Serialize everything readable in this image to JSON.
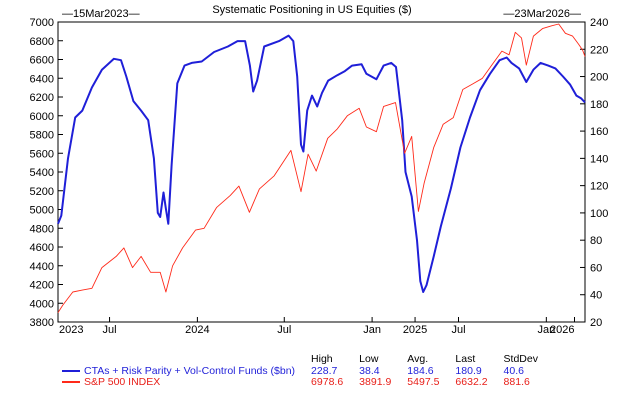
{
  "chart_data": {
    "type": "line",
    "title": "Systematic Positioning in US Equities ($)",
    "start_date_label": "15Mar2023",
    "end_date_label": "23Mar2026",
    "x_ticks": [
      {
        "label": "2023",
        "date": "2023-03-15"
      },
      {
        "label": "Jul",
        "date": "2023-07-01"
      },
      {
        "label": "2024",
        "date": "2024-01-01"
      },
      {
        "label": "Jul",
        "date": "2024-07-01"
      },
      {
        "label": "Jan",
        "date": "2025-01-01"
      },
      {
        "label": "2025",
        "date": "2025-04-01"
      },
      {
        "label": "Jul",
        "date": "2025-07-01"
      },
      {
        "label": "Jan",
        "date": "2026-01-01"
      },
      {
        "label": "2026",
        "date": "2026-03-01"
      }
    ],
    "xlim": [
      "2023-03-15",
      "2026-03-23"
    ],
    "y_left": {
      "ylim": [
        3800,
        7000
      ],
      "ticks": [
        3800,
        4000,
        4200,
        4400,
        4600,
        4800,
        5000,
        5200,
        5400,
        5600,
        5800,
        6000,
        6200,
        6400,
        6600,
        6800,
        7000
      ]
    },
    "y_right": {
      "ylim": [
        20,
        240
      ],
      "ticks": [
        20,
        40,
        60,
        80,
        100,
        120,
        140,
        160,
        180,
        200,
        220,
        240
      ]
    },
    "series": [
      {
        "name": "CTAs + Risk Parity + Vol-Control Funds ($bn)",
        "axis": "right",
        "color": "#1f1fd8",
        "points": [
          [
            "2023-03-15",
            92
          ],
          [
            "2023-03-22",
            98
          ],
          [
            "2023-04-05",
            140
          ],
          [
            "2023-04-20",
            170
          ],
          [
            "2023-05-05",
            175
          ],
          [
            "2023-05-25",
            192
          ],
          [
            "2023-06-15",
            205
          ],
          [
            "2023-07-10",
            213
          ],
          [
            "2023-07-25",
            212
          ],
          [
            "2023-08-05",
            200
          ],
          [
            "2023-08-20",
            182
          ],
          [
            "2023-09-05",
            175
          ],
          [
            "2023-09-20",
            168
          ],
          [
            "2023-10-02",
            140
          ],
          [
            "2023-10-10",
            100
          ],
          [
            "2023-10-15",
            97
          ],
          [
            "2023-10-22",
            115
          ],
          [
            "2023-10-27",
            103
          ],
          [
            "2023-11-01",
            92
          ],
          [
            "2023-11-08",
            135
          ],
          [
            "2023-11-20",
            195
          ],
          [
            "2023-12-05",
            208
          ],
          [
            "2023-12-20",
            210
          ],
          [
            "2024-01-10",
            211
          ],
          [
            "2024-02-05",
            218
          ],
          [
            "2024-03-05",
            222
          ],
          [
            "2024-03-25",
            226
          ],
          [
            "2024-04-10",
            226
          ],
          [
            "2024-04-20",
            208
          ],
          [
            "2024-04-27",
            189
          ],
          [
            "2024-05-05",
            197
          ],
          [
            "2024-05-20",
            222
          ],
          [
            "2024-06-20",
            226
          ],
          [
            "2024-07-10",
            230
          ],
          [
            "2024-07-20",
            226
          ],
          [
            "2024-07-28",
            200
          ],
          [
            "2024-08-05",
            150
          ],
          [
            "2024-08-10",
            145
          ],
          [
            "2024-08-18",
            175
          ],
          [
            "2024-08-28",
            186
          ],
          [
            "2024-09-08",
            178
          ],
          [
            "2024-09-18",
            188
          ],
          [
            "2024-10-01",
            197
          ],
          [
            "2024-10-20",
            201
          ],
          [
            "2024-11-05",
            204
          ],
          [
            "2024-11-20",
            208
          ],
          [
            "2024-12-10",
            209
          ],
          [
            "2024-12-20",
            202
          ],
          [
            "2025-01-10",
            198
          ],
          [
            "2025-01-25",
            208
          ],
          [
            "2025-02-10",
            210
          ],
          [
            "2025-02-20",
            207
          ],
          [
            "2025-03-05",
            168
          ],
          [
            "2025-03-12",
            130
          ],
          [
            "2025-03-25",
            112
          ],
          [
            "2025-04-05",
            80
          ],
          [
            "2025-04-12",
            50
          ],
          [
            "2025-04-18",
            42
          ],
          [
            "2025-04-25",
            47
          ],
          [
            "2025-05-10",
            68
          ],
          [
            "2025-05-25",
            90
          ],
          [
            "2025-06-15",
            118
          ],
          [
            "2025-07-05",
            148
          ],
          [
            "2025-07-25",
            170
          ],
          [
            "2025-08-15",
            190
          ],
          [
            "2025-09-05",
            202
          ],
          [
            "2025-09-25",
            212
          ],
          [
            "2025-10-10",
            214
          ],
          [
            "2025-10-20",
            210
          ],
          [
            "2025-11-05",
            206
          ],
          [
            "2025-11-20",
            196
          ],
          [
            "2025-12-05",
            205
          ],
          [
            "2025-12-20",
            210
          ],
          [
            "2026-01-05",
            208
          ],
          [
            "2026-01-20",
            206
          ],
          [
            "2026-02-05",
            200
          ],
          [
            "2026-02-20",
            194
          ],
          [
            "2026-03-05",
            186
          ],
          [
            "2026-03-15",
            184
          ],
          [
            "2026-03-23",
            181
          ]
        ]
      },
      {
        "name": "S&P 500 INDEX",
        "axis": "left",
        "color": "#ff2a1a",
        "points": [
          [
            "2023-03-15",
            3900
          ],
          [
            "2023-03-25",
            3980
          ],
          [
            "2023-04-15",
            4120
          ],
          [
            "2023-05-05",
            4140
          ],
          [
            "2023-05-25",
            4160
          ],
          [
            "2023-06-15",
            4380
          ],
          [
            "2023-07-15",
            4500
          ],
          [
            "2023-07-31",
            4590
          ],
          [
            "2023-08-18",
            4380
          ],
          [
            "2023-09-05",
            4500
          ],
          [
            "2023-09-25",
            4330
          ],
          [
            "2023-10-15",
            4330
          ],
          [
            "2023-10-27",
            4120
          ],
          [
            "2023-11-10",
            4400
          ],
          [
            "2023-12-01",
            4590
          ],
          [
            "2023-12-28",
            4780
          ],
          [
            "2024-01-15",
            4800
          ],
          [
            "2024-02-10",
            5020
          ],
          [
            "2024-03-10",
            5150
          ],
          [
            "2024-03-28",
            5250
          ],
          [
            "2024-04-19",
            4970
          ],
          [
            "2024-05-10",
            5220
          ],
          [
            "2024-06-10",
            5360
          ],
          [
            "2024-07-15",
            5630
          ],
          [
            "2024-08-05",
            5190
          ],
          [
            "2024-08-20",
            5590
          ],
          [
            "2024-09-06",
            5410
          ],
          [
            "2024-09-30",
            5760
          ],
          [
            "2024-10-20",
            5860
          ],
          [
            "2024-11-10",
            6000
          ],
          [
            "2024-12-05",
            6080
          ],
          [
            "2024-12-20",
            5880
          ],
          [
            "2025-01-10",
            5830
          ],
          [
            "2025-01-25",
            6100
          ],
          [
            "2025-02-19",
            6140
          ],
          [
            "2025-03-10",
            5600
          ],
          [
            "2025-03-25",
            5780
          ],
          [
            "2025-04-08",
            4980
          ],
          [
            "2025-04-20",
            5280
          ],
          [
            "2025-05-10",
            5660
          ],
          [
            "2025-05-30",
            5910
          ],
          [
            "2025-06-20",
            5980
          ],
          [
            "2025-07-10",
            6280
          ],
          [
            "2025-07-31",
            6340
          ],
          [
            "2025-08-20",
            6400
          ],
          [
            "2025-09-10",
            6550
          ],
          [
            "2025-09-30",
            6690
          ],
          [
            "2025-10-15",
            6650
          ],
          [
            "2025-10-28",
            6890
          ],
          [
            "2025-11-10",
            6830
          ],
          [
            "2025-11-20",
            6540
          ],
          [
            "2025-12-05",
            6850
          ],
          [
            "2025-12-24",
            6930
          ],
          [
            "2026-01-12",
            6960
          ],
          [
            "2026-01-27",
            6979
          ],
          [
            "2026-02-10",
            6880
          ],
          [
            "2026-02-25",
            6850
          ],
          [
            "2026-03-10",
            6760
          ],
          [
            "2026-03-18",
            6700
          ],
          [
            "2026-03-23",
            6632
          ]
        ]
      }
    ],
    "stats_headers": [
      "High",
      "Low",
      "Avg.",
      "Last",
      "StdDev"
    ],
    "stats": [
      {
        "label": "CTAs + Risk Parity + Vol-Control Funds ($bn)",
        "color": "#1f1fd8",
        "values": [
          "228.7",
          "38.4",
          "184.6",
          "180.9",
          "40.6"
        ]
      },
      {
        "label": "S&P 500 INDEX",
        "color": "#e8201a",
        "values": [
          "6978.6",
          "3891.9",
          "5497.5",
          "6632.2",
          "881.6"
        ]
      }
    ]
  }
}
